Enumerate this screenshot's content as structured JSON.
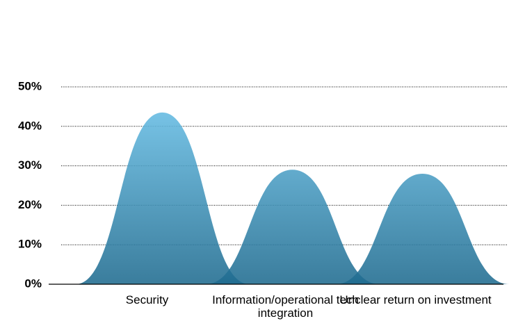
{
  "chart_data": {
    "type": "bell",
    "categories": [
      "Security",
      "Information/operational tech integration",
      "Unclear return on investment"
    ],
    "values": [
      43.5,
      29,
      28
    ],
    "color_top": "#6ec6ee",
    "color_bottom": "#1f6b8f",
    "ylim": [
      0,
      50
    ],
    "yticks": [
      {
        "value": 0,
        "label": "0%"
      },
      {
        "value": 10,
        "label": "10%"
      },
      {
        "value": 20,
        "label": "20%"
      },
      {
        "value": 30,
        "label": "30%"
      },
      {
        "value": 40,
        "label": "40%"
      },
      {
        "value": 50,
        "label": "50%"
      }
    ],
    "grid": true
  }
}
